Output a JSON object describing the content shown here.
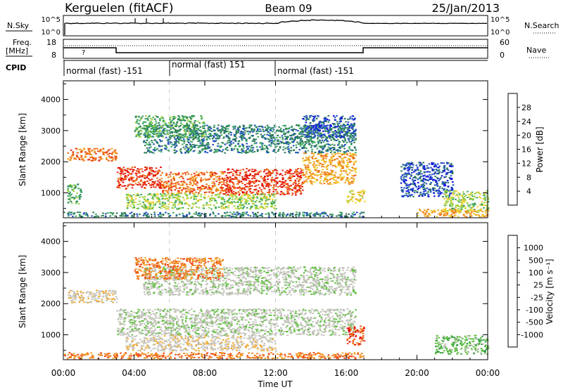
{
  "header": {
    "station": "Kerguelen (fitACF)",
    "beam": "Beam 09",
    "date": "25/Jan/2013"
  },
  "top_panels": {
    "nsky_label": "N.Sky",
    "nsky_ticks": [
      "10^5",
      "10^0"
    ],
    "nsearch_label": "N.Search",
    "nsearch_ticks": [
      "10^5",
      "10^0"
    ],
    "freq_label_1": "Freq.",
    "freq_label_2": "[MHz]",
    "freq_ticks": [
      "18",
      "8"
    ],
    "nave_label": "Nave",
    "nave_ticks": [
      "60",
      "0"
    ],
    "unknown_mark": "?",
    "cpid_label": "CPID",
    "cpid_segments": [
      {
        "label": "normal (fast) -151",
        "start_hour": 0
      },
      {
        "label": "normal (fast) 151",
        "start_hour": 6
      },
      {
        "label": "normal (fast) -151",
        "start_hour": 12
      }
    ]
  },
  "chart_data": [
    {
      "type": "heatmap",
      "title": "",
      "xlabel": "",
      "ylabel": "Slant Range [km]",
      "x_range_hours": [
        0,
        24
      ],
      "ylim": [
        200,
        4600
      ],
      "yticks": [
        "1000",
        "2000",
        "3000",
        "4000"
      ],
      "colorbar": {
        "label": "Power [dB]",
        "ticks": [
          "4",
          "8",
          "12",
          "16",
          "20",
          "24",
          "28"
        ],
        "colors": [
          "#1010e0",
          "#2050c0",
          "#2a7a5a",
          "#3aa860",
          "#9ad040",
          "#f0d030",
          "#f0a020",
          "#f07018",
          "#e83010",
          "#e00000"
        ]
      },
      "regions": [
        {
          "t0": 0.2,
          "t1": 3.0,
          "r0": 2050,
          "r1": 2450,
          "level": 7
        },
        {
          "t0": 0.2,
          "t1": 1.0,
          "r0": 650,
          "r1": 1300,
          "level": 3
        },
        {
          "t0": 3.0,
          "t1": 5.5,
          "r0": 1150,
          "r1": 1850,
          "level": 8
        },
        {
          "t0": 5.5,
          "t1": 9.0,
          "r0": 1000,
          "r1": 1700,
          "level": 7
        },
        {
          "t0": 9.0,
          "t1": 13.5,
          "r0": 950,
          "r1": 1800,
          "level": 8
        },
        {
          "t0": 13.5,
          "t1": 16.5,
          "r0": 1300,
          "r1": 2300,
          "level": 6
        },
        {
          "t0": 16.0,
          "t1": 17.0,
          "r0": 700,
          "r1": 1100,
          "level": 5
        },
        {
          "t0": 3.5,
          "t1": 12.0,
          "r0": 500,
          "r1": 1000,
          "level": 4
        },
        {
          "t0": 4.5,
          "t1": 16.5,
          "r0": 2300,
          "r1": 3200,
          "level": 2
        },
        {
          "t0": 4.0,
          "t1": 8.0,
          "r0": 2800,
          "r1": 3500,
          "level": 3
        },
        {
          "t0": 13.5,
          "t1": 16.5,
          "r0": 2800,
          "r1": 3500,
          "level": 1
        },
        {
          "t0": 0.0,
          "t1": 17.0,
          "r0": 250,
          "r1": 400,
          "level": 2
        },
        {
          "t0": 19.0,
          "t1": 22.0,
          "r0": 900,
          "r1": 2000,
          "level": 1
        },
        {
          "t0": 21.5,
          "t1": 24.0,
          "r0": 400,
          "r1": 1100,
          "level": 4
        },
        {
          "t0": 20.0,
          "t1": 24.0,
          "r0": 250,
          "r1": 500,
          "level": 6
        }
      ]
    },
    {
      "type": "heatmap",
      "title": "",
      "xlabel": "Time UT",
      "ylabel": "Slant Range [km]",
      "x_range_hours": [
        0,
        24
      ],
      "ylim": [
        200,
        4600
      ],
      "yticks": [
        "1000",
        "2000",
        "3000",
        "4000"
      ],
      "xticks": [
        "00:00",
        "04:00",
        "08:00",
        "12:00",
        "16:00",
        "20:00",
        "00:00"
      ],
      "colorbar": {
        "label": "Velocity [m s⁻¹]",
        "ticks": [
          "-1000",
          "-500",
          "-100",
          "-25",
          "25",
          "100",
          "500",
          "1000"
        ],
        "colors": [
          "#e00000",
          "#f04818",
          "#f08020",
          "#f0a830",
          "#c8c8c0",
          "#c0c0b8",
          "#60c040",
          "#30a040",
          "#2a6ab0",
          "#1a40c8"
        ]
      },
      "regions": [
        {
          "t0": 0.2,
          "t1": 3.0,
          "r0": 2050,
          "r1": 2450,
          "level": 4
        },
        {
          "t0": 3.0,
          "t1": 16.5,
          "r0": 1000,
          "r1": 1850,
          "level": 5
        },
        {
          "t0": 3.5,
          "t1": 12.0,
          "r0": 500,
          "r1": 1000,
          "level": 4
        },
        {
          "t0": 4.5,
          "t1": 16.5,
          "r0": 2300,
          "r1": 3200,
          "level": 5
        },
        {
          "t0": 16.0,
          "t1": 17.0,
          "r0": 700,
          "r1": 1300,
          "level": 1
        },
        {
          "t0": 4.0,
          "t1": 9.0,
          "r0": 2800,
          "r1": 3500,
          "level": 2
        },
        {
          "t0": 0.0,
          "t1": 17.0,
          "r0": 250,
          "r1": 450,
          "level": 2
        },
        {
          "t0": 21.0,
          "t1": 24.0,
          "r0": 400,
          "r1": 1000,
          "level": 6
        }
      ]
    }
  ]
}
